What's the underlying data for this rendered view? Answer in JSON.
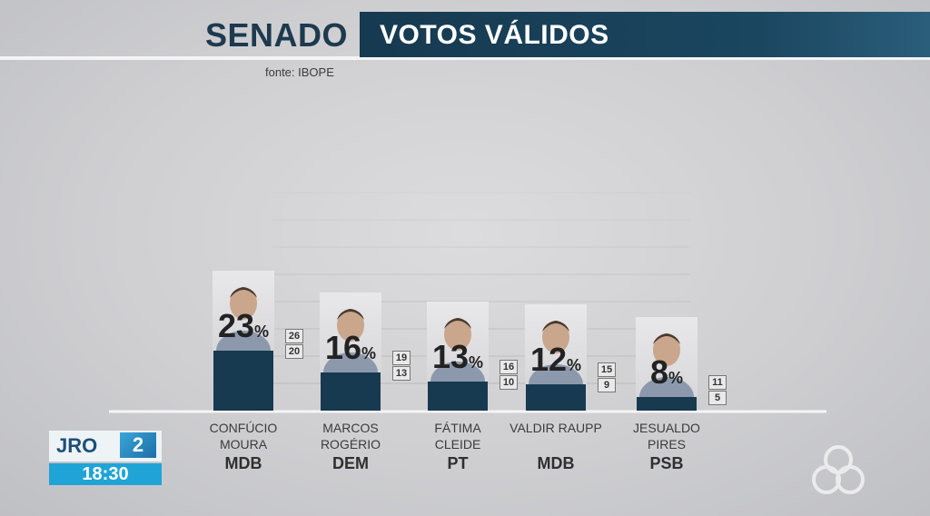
{
  "header": {
    "title_left": "SENADO",
    "title_right": "VOTOS VÁLIDOS",
    "source": "fonte: IBOPE"
  },
  "chart_data": {
    "type": "bar",
    "categories": [
      "CONFÚCIO MOURA",
      "MARCOS ROGÉRIO",
      "FÁTIMA CLEIDE",
      "VALDIR RAUPP",
      "JESUALDO PIRES"
    ],
    "values": [
      23,
      16,
      13,
      12,
      8
    ],
    "range_high": [
      26,
      19,
      16,
      15,
      11
    ],
    "range_low": [
      20,
      13,
      10,
      9,
      5
    ],
    "unit": "%",
    "candidates": [
      {
        "name_line1": "CONFÚCIO",
        "name_line2": "MOURA",
        "party": "MDB",
        "value": 23,
        "high": 26,
        "low": 20
      },
      {
        "name_line1": "MARCOS",
        "name_line2": "ROGÉRIO",
        "party": "DEM",
        "value": 16,
        "high": 19,
        "low": 13
      },
      {
        "name_line1": "FÁTIMA",
        "name_line2": "CLEIDE",
        "party": "PT",
        "value": 13,
        "high": 16,
        "low": 10
      },
      {
        "name_line1": "VALDIR RAUPP",
        "name_line2": "",
        "party": "MDB",
        "value": 12,
        "high": 15,
        "low": 9
      },
      {
        "name_line1": "JESUALDO",
        "name_line2": "PIRES",
        "party": "PSB",
        "value": 8,
        "high": 11,
        "low": 5
      }
    ],
    "title": "VOTOS VÁLIDOS",
    "ylim": [
      0,
      40
    ],
    "grid": true
  },
  "bug": {
    "program": "JRO",
    "edition": "2",
    "time": "18:30"
  },
  "colors": {
    "bar_dark": "#173a50",
    "bar_light": "#2e6483",
    "header_dark": "#163a50",
    "logo_blue": "#20a4d8"
  }
}
